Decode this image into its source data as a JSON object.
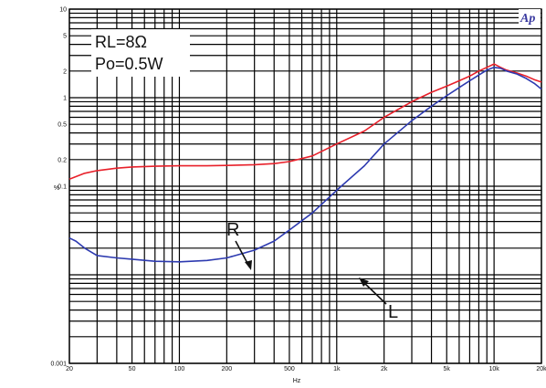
{
  "chart_data": {
    "type": "line",
    "xscale": "log",
    "yscale": "log",
    "xlim": [
      20,
      20000
    ],
    "ylim": [
      0.001,
      10
    ],
    "xlabel": "Hz",
    "ylabel": "%",
    "x_tick_labels": [
      {
        "value": 20,
        "label": "20"
      },
      {
        "value": 50,
        "label": "50"
      },
      {
        "value": 100,
        "label": "100"
      },
      {
        "value": 200,
        "label": "200"
      },
      {
        "value": 500,
        "label": "500"
      },
      {
        "value": 1000,
        "label": "1k"
      },
      {
        "value": 2000,
        "label": "2k"
      },
      {
        "value": 5000,
        "label": "5k"
      },
      {
        "value": 10000,
        "label": "10k"
      },
      {
        "value": 20000,
        "label": "20k"
      }
    ],
    "y_tick_labels": [
      {
        "value": 10,
        "label": "10"
      },
      {
        "value": 5,
        "label": "5"
      },
      {
        "value": 2,
        "label": "2"
      },
      {
        "value": 1,
        "label": "1"
      },
      {
        "value": 0.5,
        "label": "0.5"
      },
      {
        "value": 0.2,
        "label": "0.2"
      },
      {
        "value": 0.1,
        "label": "0.1"
      },
      {
        "value": 0.001,
        "label": "0.001"
      }
    ],
    "grid": true,
    "annotation_lines": [
      "RL=8Ω",
      "Po=0.5W"
    ],
    "logo_text": "Ap",
    "series": [
      {
        "name": "R",
        "color": "#e8202a",
        "x": [
          20,
          25,
          30,
          40,
          50,
          70,
          100,
          150,
          200,
          300,
          400,
          500,
          700,
          1000,
          1500,
          2000,
          3000,
          4000,
          5000,
          6000,
          7000,
          8000,
          9000,
          10000,
          11000,
          12000,
          14000,
          16000,
          18000,
          20000
        ],
        "y": [
          0.12,
          0.14,
          0.15,
          0.16,
          0.165,
          0.168,
          0.17,
          0.17,
          0.172,
          0.175,
          0.18,
          0.19,
          0.22,
          0.3,
          0.42,
          0.6,
          0.9,
          1.15,
          1.35,
          1.55,
          1.75,
          2.0,
          2.2,
          2.4,
          2.2,
          2.05,
          1.9,
          1.75,
          1.6,
          1.5
        ]
      },
      {
        "name": "L",
        "color": "#2d3ab0",
        "x": [
          20,
          22,
          25,
          30,
          40,
          50,
          70,
          100,
          150,
          200,
          300,
          400,
          500,
          700,
          1000,
          1500,
          2000,
          3000,
          4000,
          5000,
          6000,
          7000,
          8000,
          9000,
          10000,
          11000,
          12000,
          14000,
          16000,
          18000,
          20000
        ],
        "y": [
          0.026,
          0.024,
          0.02,
          0.0165,
          0.0155,
          0.015,
          0.0142,
          0.014,
          0.0145,
          0.0155,
          0.019,
          0.024,
          0.032,
          0.05,
          0.09,
          0.17,
          0.3,
          0.55,
          0.8,
          1.05,
          1.3,
          1.55,
          1.8,
          2.05,
          2.2,
          2.15,
          2.0,
          1.85,
          1.65,
          1.45,
          1.25
        ]
      }
    ],
    "curve_labels": [
      {
        "text": "R",
        "series": "R"
      },
      {
        "text": "L",
        "series": "L"
      }
    ]
  }
}
